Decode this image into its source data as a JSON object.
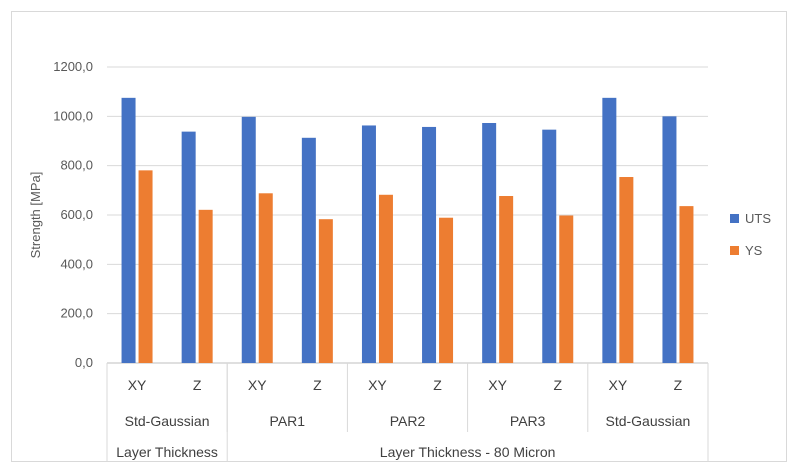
{
  "chart_data": {
    "type": "bar",
    "ylabel": "Strength [MPa]",
    "ylim": [
      0,
      1200
    ],
    "yticks": [
      "0,0",
      "200,0",
      "400,0",
      "600,0",
      "800,0",
      "1000,0",
      "1200,0"
    ],
    "grid": true,
    "legend_position": "right",
    "categories": [
      "XY",
      "Z",
      "XY",
      "Z",
      "XY",
      "Z",
      "XY",
      "Z",
      "XY",
      "Z"
    ],
    "groups": [
      {
        "label": "Std-Gaussian",
        "span": 2
      },
      {
        "label": "PAR1",
        "span": 2
      },
      {
        "label": "PAR2",
        "span": 2
      },
      {
        "label": "PAR3",
        "span": 2
      },
      {
        "label": "Std-Gaussian",
        "span": 2
      }
    ],
    "supergroups": [
      {
        "label": "Layer Thickness",
        "span": 2
      },
      {
        "label": "Layer Thickness - 80 Micron",
        "span": 8
      }
    ],
    "series": [
      {
        "name": "UTS",
        "color": "#4472C4",
        "values": [
          1075,
          938,
          998,
          913,
          963,
          957,
          973,
          946,
          1075,
          1000
        ]
      },
      {
        "name": "YS",
        "color": "#ED7D31",
        "values": [
          781,
          621,
          688,
          583,
          682,
          589,
          677,
          598,
          754,
          636
        ]
      }
    ]
  }
}
